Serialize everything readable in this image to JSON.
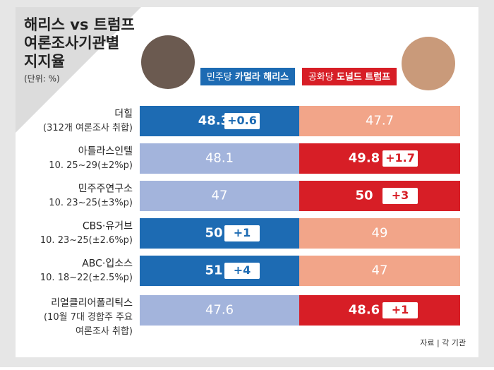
{
  "chart_data": {
    "type": "versus",
    "title_lines": [
      "해리스 vs 트럼프",
      "여론조사기관별",
      "지지율"
    ],
    "unit_note": "(단위: %)",
    "source": "자료 | 각 기관",
    "categories": [
      "더힐",
      "아틀라스인텔",
      "민주주연구소",
      "CBS·유거브",
      "ABC·입소스",
      "리얼클리어폴리틱스"
    ],
    "category_notes": [
      [
        "(312개 여론조사 취합)"
      ],
      [
        "10. 25~29(±2%p)"
      ],
      [
        "10. 23~25(±3%p)"
      ],
      [
        "10. 23~25(±2.6%p)"
      ],
      [
        "10. 18~22(±2.5%p)"
      ],
      [
        "(10월 7대 경합주 주요",
        "여론조사 취합)"
      ]
    ],
    "series": [
      {
        "party": "민주당",
        "name": "카멀라 해리스",
        "color": "#1d6bb3",
        "color_light": "#a3b4dc",
        "values": [
          48.3,
          48.1,
          47,
          50,
          51,
          47.6
        ],
        "margins": [
          0.6,
          null,
          null,
          1,
          4,
          null
        ],
        "margin_labels": [
          "+0.6",
          null,
          null,
          "+1",
          "+4",
          null
        ]
      },
      {
        "party": "공화당",
        "name": "도널드 트럼프",
        "color": "#d71e26",
        "color_light": "#f2a589",
        "values": [
          47.7,
          49.8,
          50,
          49,
          47,
          48.6
        ],
        "margins": [
          null,
          1.7,
          3,
          null,
          null,
          1
        ],
        "margin_labels": [
          null,
          "+1.7",
          "+3",
          null,
          null,
          "+1"
        ]
      }
    ]
  }
}
